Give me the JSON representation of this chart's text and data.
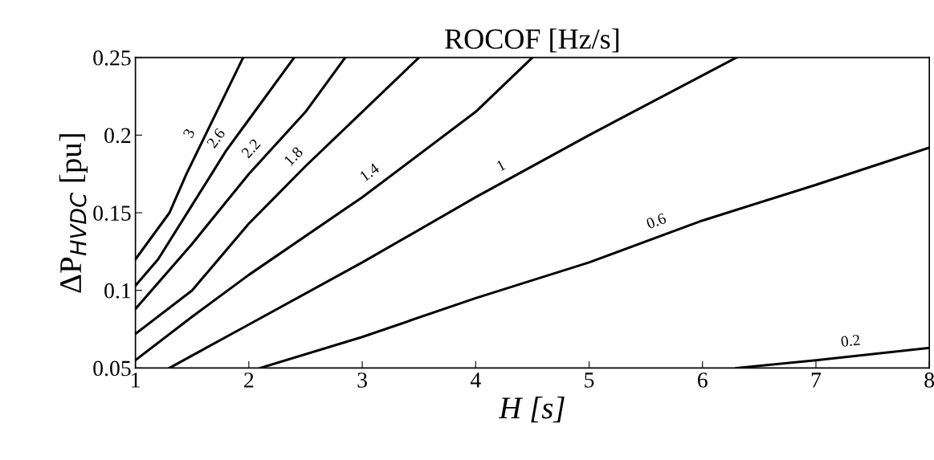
{
  "chart_data": {
    "type": "line",
    "title": "ROCOF [Hz/s]",
    "xlabel": "H [s]",
    "ylabel": "ΔP$_{HVDC}$ [pu]",
    "xlim": [
      1,
      8
    ],
    "xticks": [
      1,
      2,
      3,
      4,
      5,
      6,
      7,
      8
    ],
    "ylim": [
      0.05,
      0.25
    ],
    "yticks": [
      0.05,
      0.1,
      0.15,
      0.2,
      0.25
    ],
    "grid": false,
    "legend": false,
    "marker": "none",
    "line_style": "solid",
    "series": [
      {
        "name": "3",
        "color": "#000000",
        "x": [
          1,
          1.3,
          1.45,
          1.65,
          1.85,
          1.95
        ],
        "values": [
          0.12,
          0.15,
          0.175,
          0.205,
          0.235,
          0.25
        ]
      },
      {
        "name": "2.6",
        "color": "#000000",
        "x": [
          1,
          1.2,
          1.5,
          1.8,
          2.0,
          2.4
        ],
        "values": [
          0.103,
          0.12,
          0.155,
          0.19,
          0.21,
          0.25
        ]
      },
      {
        "name": "2.2",
        "color": "#000000",
        "x": [
          1,
          1.5,
          2,
          2.5,
          2.85
        ],
        "values": [
          0.088,
          0.13,
          0.175,
          0.215,
          0.25
        ]
      },
      {
        "name": "1.8",
        "color": "#000000",
        "x": [
          1,
          1.5,
          2,
          2.5,
          3,
          3.5
        ],
        "values": [
          0.072,
          0.1,
          0.143,
          0.18,
          0.215,
          0.25
        ]
      },
      {
        "name": "1.4",
        "color": "#000000",
        "x": [
          1,
          1.5,
          2,
          3,
          4,
          4.5
        ],
        "values": [
          0.055,
          0.083,
          0.11,
          0.16,
          0.215,
          0.25
        ]
      },
      {
        "name": "1",
        "color": "#000000",
        "x": [
          1.3,
          1.5,
          2,
          3,
          4,
          5,
          6.3
        ],
        "values": [
          0.05,
          0.058,
          0.078,
          0.118,
          0.16,
          0.2,
          0.25
        ]
      },
      {
        "name": "0.6",
        "color": "#000000",
        "x": [
          2.1,
          3,
          4,
          5,
          6,
          7,
          8
        ],
        "values": [
          0.05,
          0.07,
          0.095,
          0.118,
          0.145,
          0.168,
          0.192
        ]
      },
      {
        "name": "0.2",
        "color": "#000000",
        "x": [
          6.3,
          7,
          8
        ],
        "values": [
          0.05,
          0.055,
          0.063
        ]
      }
    ]
  }
}
